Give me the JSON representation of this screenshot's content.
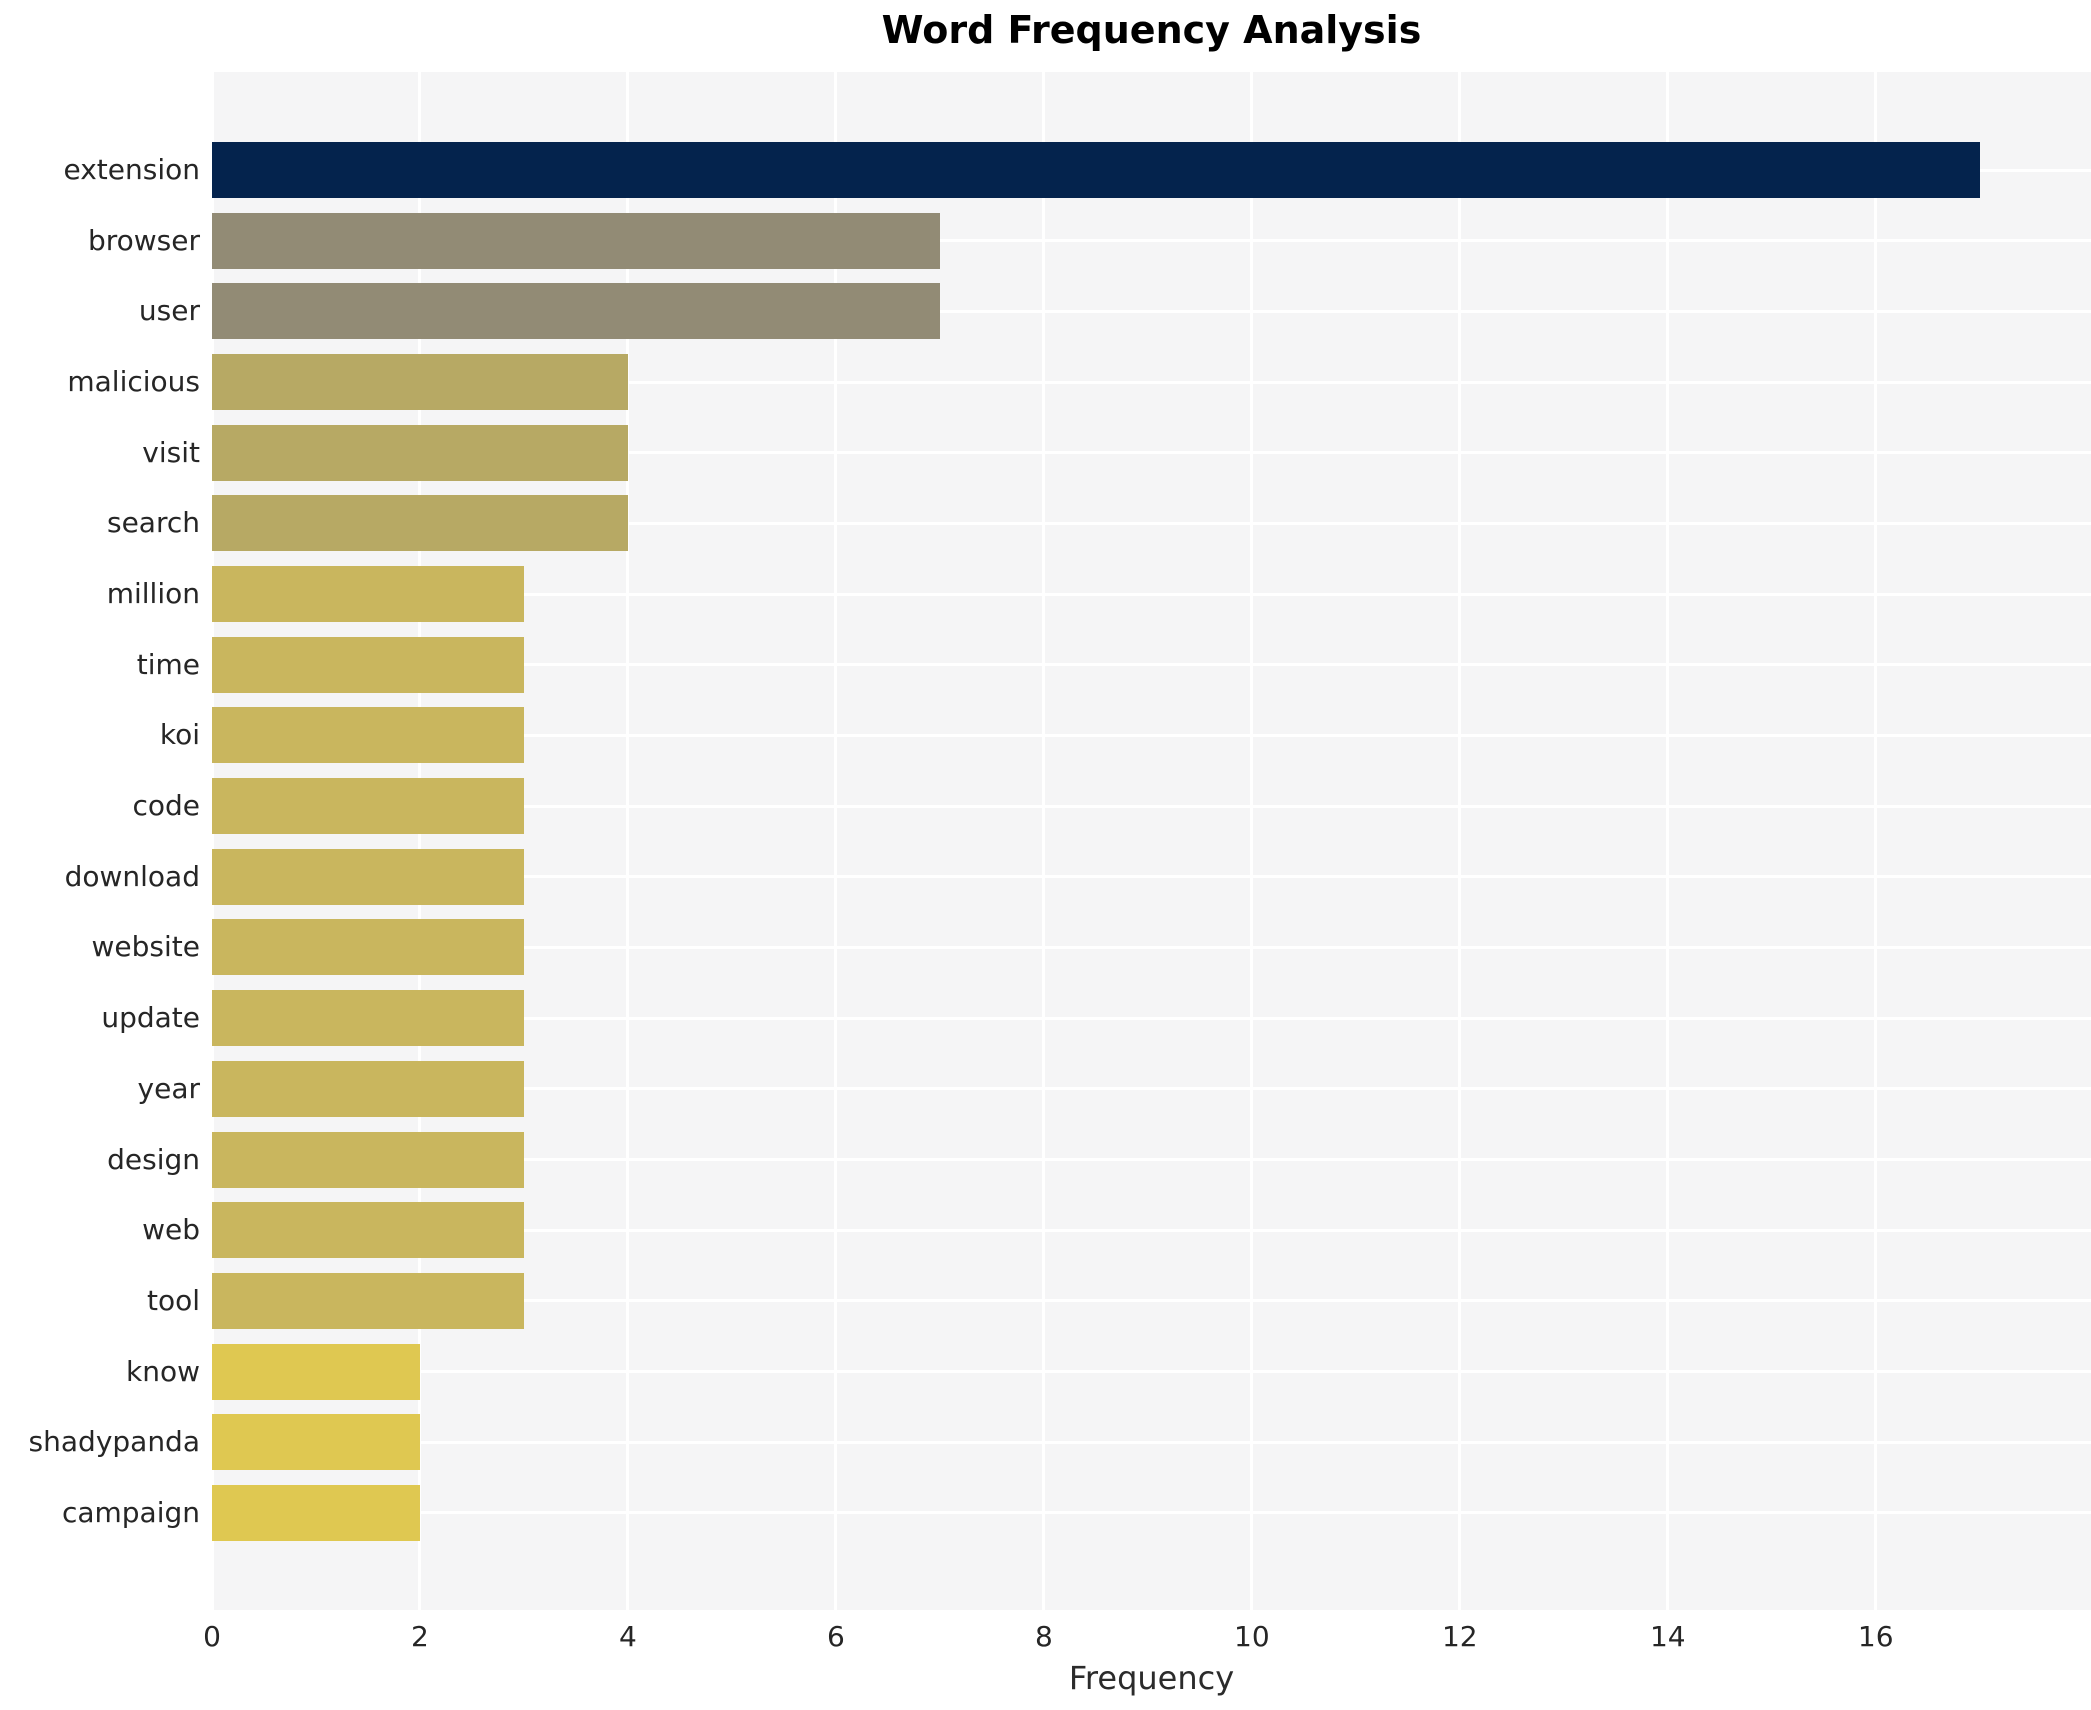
{
  "chart_data": {
    "type": "bar",
    "orientation": "horizontal",
    "title": "Word Frequency Analysis",
    "xlabel": "Frequency",
    "ylabel": "",
    "categories": [
      "extension",
      "browser",
      "user",
      "malicious",
      "visit",
      "search",
      "million",
      "time",
      "koi",
      "code",
      "download",
      "website",
      "update",
      "year",
      "design",
      "web",
      "tool",
      "know",
      "shadypanda",
      "campaign"
    ],
    "values": [
      17,
      7,
      7,
      4,
      4,
      4,
      3,
      3,
      3,
      3,
      3,
      3,
      3,
      3,
      3,
      3,
      3,
      2,
      2,
      2
    ],
    "bar_colors": [
      "#04234d",
      "#928b75",
      "#928b75",
      "#b7a964",
      "#b7a964",
      "#b7a964",
      "#c9b65e",
      "#c9b65e",
      "#c9b65e",
      "#c9b65e",
      "#c9b65e",
      "#c9b65e",
      "#c9b65e",
      "#c9b65e",
      "#c9b65e",
      "#c9b65e",
      "#c9b65e",
      "#dfc851",
      "#dfc851",
      "#dfc851"
    ],
    "xticks": [
      0,
      2,
      4,
      6,
      8,
      10,
      12,
      14,
      16
    ],
    "xlim": [
      0,
      18.07
    ],
    "grid": true,
    "legend": "none",
    "colors": {
      "plot_background": "#f5f5f6",
      "grid": "#ffffff",
      "title_text": "#000000",
      "axis_text": "#262626"
    }
  }
}
